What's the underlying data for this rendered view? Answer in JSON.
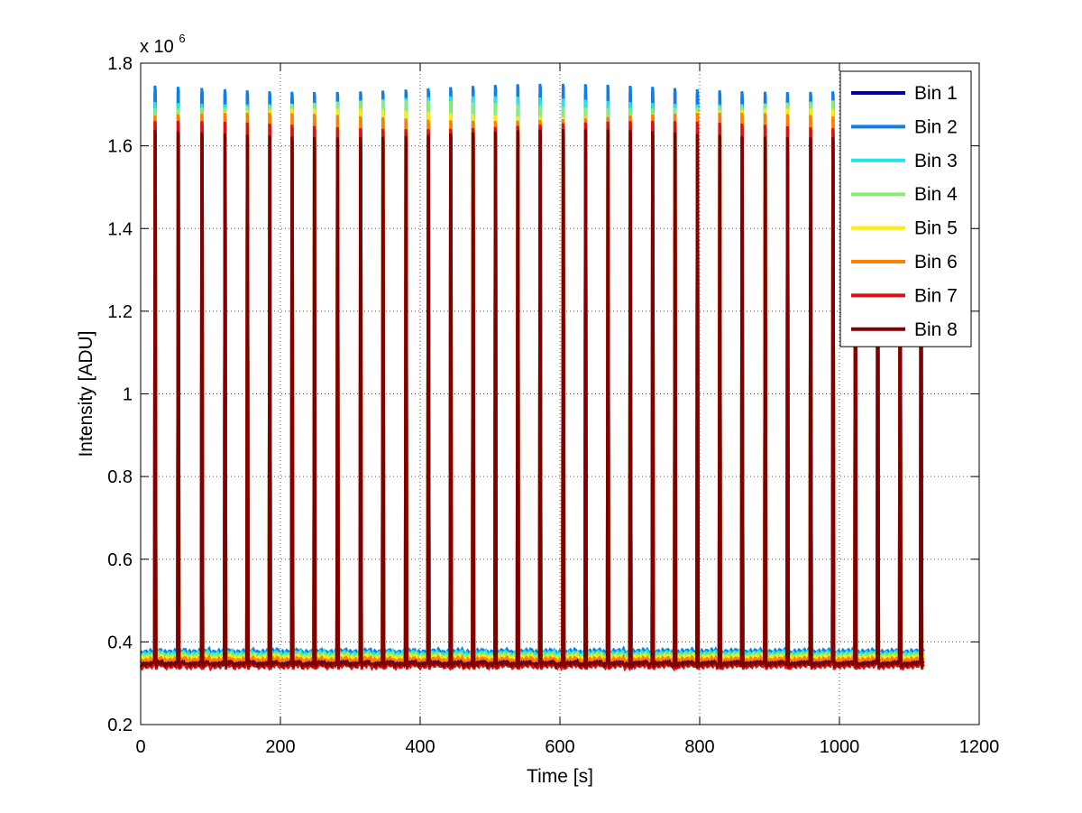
{
  "chart_data": {
    "type": "line",
    "title": "",
    "xlabel": "Time [s]",
    "ylabel": "Intensity [ADU]",
    "y_exponent_label": "x 10",
    "y_exponent_power": "6",
    "xlim": [
      0,
      1200
    ],
    "ylim": [
      0.2,
      1.8
    ],
    "y_scale": 1000000,
    "xticks": [
      0,
      200,
      400,
      600,
      800,
      1000,
      1200
    ],
    "xtick_labels": [
      "0",
      "200",
      "400",
      "600",
      "800",
      "1000",
      "1200"
    ],
    "yticks": [
      0.2,
      0.4,
      0.6,
      0.8,
      1.0,
      1.2,
      1.4,
      1.6,
      1.8
    ],
    "ytick_labels": [
      "0.2",
      "0.4",
      "0.6",
      "0.8",
      "1",
      "1.2",
      "1.4",
      "1.6",
      "1.8"
    ],
    "grid": true,
    "legend_position": "top-right",
    "pulse_times": [
      22,
      55,
      89,
      122,
      154,
      186,
      218,
      250,
      283,
      316,
      348,
      381,
      413,
      445,
      477,
      509,
      541,
      573,
      606,
      638,
      670,
      702,
      734,
      766,
      798,
      830,
      862,
      895,
      927,
      960,
      992,
      1024,
      1056,
      1088,
      1118
    ],
    "series": [
      {
        "name": "Bin 1",
        "color": "#0000aa",
        "baseline": 0.355,
        "peak": 1.7
      },
      {
        "name": "Bin 2",
        "color": "#0f7fe6",
        "baseline": 0.38,
        "peak": 1.72
      },
      {
        "name": "Bin 3",
        "color": "#22e6e6",
        "baseline": 0.375,
        "peak": 1.71
      },
      {
        "name": "Bin 4",
        "color": "#88ee77",
        "baseline": 0.37,
        "peak": 1.7
      },
      {
        "name": "Bin 5",
        "color": "#ffee00",
        "baseline": 0.365,
        "peak": 1.68
      },
      {
        "name": "Bin 6",
        "color": "#ff8000",
        "baseline": 0.36,
        "peak": 1.67
      },
      {
        "name": "Bin 7",
        "color": "#e01010",
        "baseline": 0.345,
        "peak": 1.65
      },
      {
        "name": "Bin 8",
        "color": "#800000",
        "baseline": 0.35,
        "peak": 1.63
      }
    ]
  }
}
